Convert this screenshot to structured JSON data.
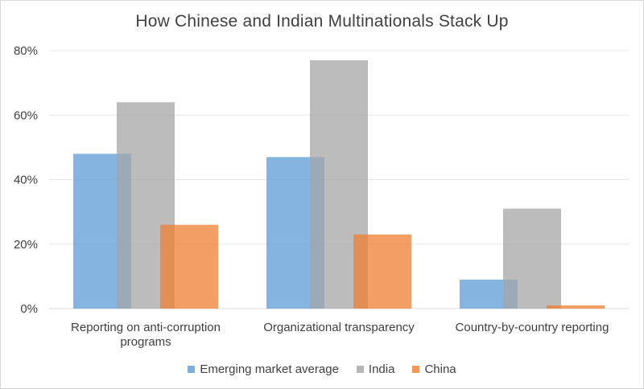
{
  "chart_data": {
    "type": "bar",
    "title": "How Chinese and Indian Multinationals Stack Up",
    "categories": [
      "Reporting on anti-corruption programs",
      "Organizational transparency",
      "Country-by-country reporting"
    ],
    "category_lines": [
      [
        "Reporting on anti-corruption",
        "programs"
      ],
      [
        "Organizational transparency"
      ],
      [
        "Country-by-country reporting"
      ]
    ],
    "series": [
      {
        "name": "Emerging market average",
        "values": [
          48,
          47,
          9
        ],
        "color": "#5B9BD5"
      },
      {
        "name": "India",
        "values": [
          64,
          77,
          31
        ],
        "color": "#A5A5A5"
      },
      {
        "name": "China",
        "values": [
          26,
          23,
          1
        ],
        "color": "#ED7D31"
      }
    ],
    "ylim": [
      0,
      80
    ],
    "yticks": [
      "0%",
      "20%",
      "40%",
      "60%",
      "80%"
    ],
    "ytick_values": [
      0,
      20,
      40,
      60,
      80
    ],
    "grid": true,
    "legend_position": "bottom"
  }
}
